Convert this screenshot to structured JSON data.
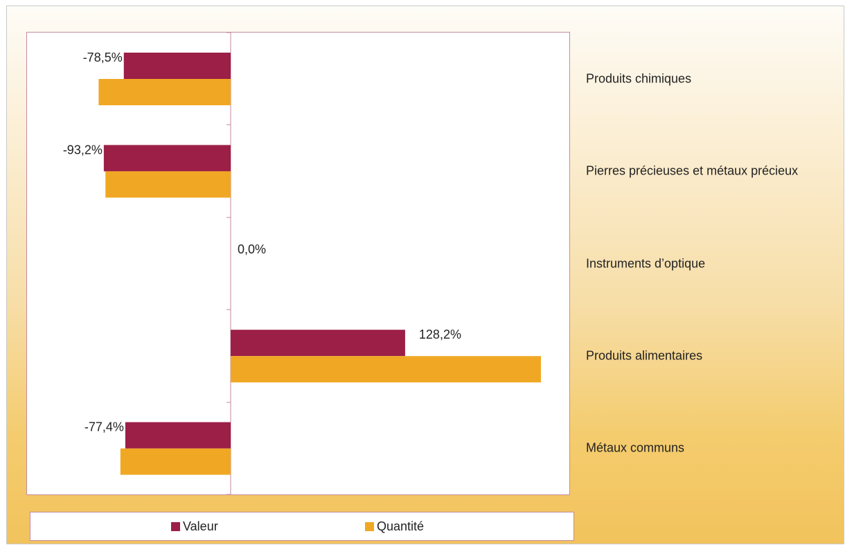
{
  "chart_data": {
    "type": "bar",
    "orientation": "horizontal",
    "categories": [
      "Produits chimiques",
      "Pierres précieuses et métaux précieux",
      "Instruments d’optique",
      "Produits alimentaires",
      "Métaux communs"
    ],
    "series": [
      {
        "name": "Valeur",
        "values": [
          -78.5,
          -93.2,
          0.0,
          128.2,
          -77.4
        ],
        "color": "#9c1f47",
        "labels": [
          "-78,5%",
          "-93,2%",
          "0,0%",
          "128,2%",
          "-77,4%"
        ]
      },
      {
        "name": "Quantité",
        "values": [
          -97,
          -92,
          0.0,
          228,
          -81
        ],
        "color": "#f0a824"
      }
    ],
    "legend_position": "bottom",
    "grid": false
  }
}
